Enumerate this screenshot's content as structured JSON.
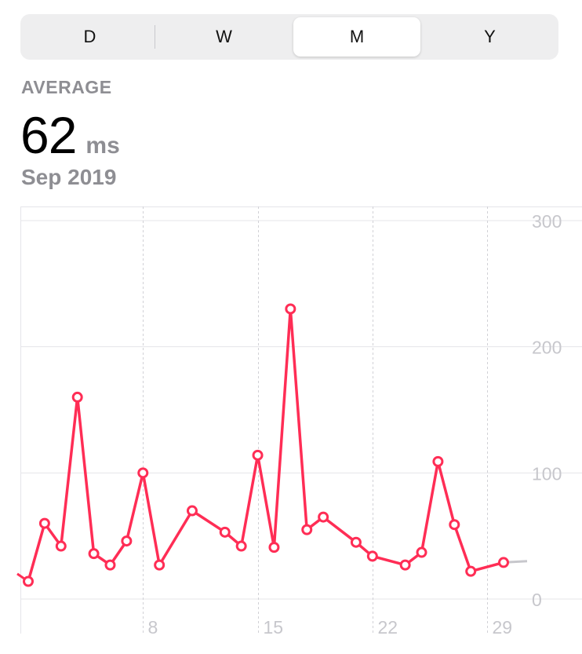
{
  "segmented_control": {
    "options": [
      "D",
      "W",
      "M",
      "Y"
    ],
    "selected": "M"
  },
  "summary": {
    "label": "AVERAGE",
    "value": "62",
    "unit": "ms",
    "period": "Sep 2019"
  },
  "colors": {
    "series": "#ff2d55",
    "grid": "#e5e5ea",
    "tick_text": "#c7c7cc",
    "projection": "#c7c7cc"
  },
  "chart_data": {
    "type": "line",
    "title": "",
    "xlabel": "",
    "ylabel": "",
    "xlim": [
      1,
      30
    ],
    "ylim": [
      0,
      300
    ],
    "x_ticks": [
      8,
      15,
      22,
      29
    ],
    "y_ticks": [
      0,
      100,
      200,
      300
    ],
    "grid": true,
    "series": [
      {
        "x": [
          1,
          2,
          3,
          4,
          5,
          6,
          7,
          8,
          9,
          11,
          13,
          14,
          15,
          16,
          17,
          18,
          19,
          21,
          22,
          24,
          25,
          26,
          27,
          28,
          30
        ],
        "values": [
          14,
          60,
          42,
          160,
          36,
          27,
          46,
          100,
          27,
          70,
          53,
          42,
          114,
          41,
          230,
          55,
          65,
          45,
          34,
          27,
          37,
          109,
          59,
          22,
          29
        ]
      }
    ],
    "lead_in": {
      "x": [
        0.5,
        1
      ],
      "values": [
        20,
        14
      ]
    },
    "projection": {
      "x": [
        30,
        31.5
      ],
      "values": [
        29,
        30
      ]
    }
  }
}
